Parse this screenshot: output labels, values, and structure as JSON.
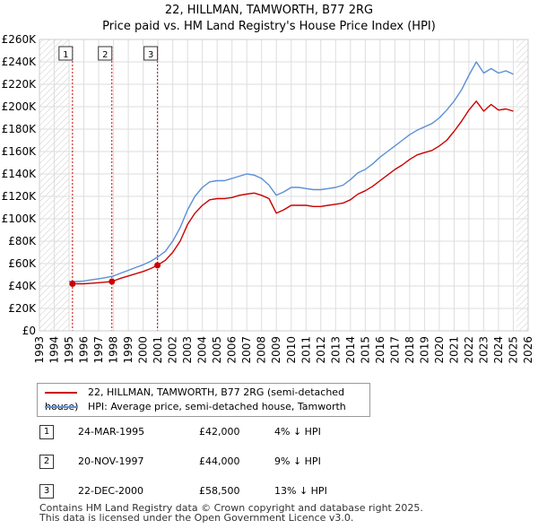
{
  "title_line1": "22, HILLMAN, TAMWORTH, B77 2RG",
  "title_line2": "Price paid vs. HM Land Registry's House Price Index (HPI)",
  "chart_data": {
    "type": "line",
    "xlim": [
      1993,
      2026
    ],
    "ylim": [
      0,
      260000
    ],
    "y_ticks": [
      0,
      20000,
      40000,
      60000,
      80000,
      100000,
      120000,
      140000,
      160000,
      180000,
      200000,
      220000,
      240000,
      260000
    ],
    "y_tick_labels": [
      "£0",
      "£20K",
      "£40K",
      "£60K",
      "£80K",
      "£100K",
      "£120K",
      "£140K",
      "£160K",
      "£180K",
      "£200K",
      "£220K",
      "£240K",
      "£260K"
    ],
    "x_ticks": [
      1993,
      1994,
      1995,
      1996,
      1997,
      1998,
      1999,
      2000,
      2001,
      2002,
      2003,
      2004,
      2005,
      2006,
      2007,
      2008,
      2009,
      2010,
      2011,
      2012,
      2013,
      2014,
      2015,
      2016,
      2017,
      2018,
      2019,
      2020,
      2021,
      2022,
      2023,
      2024,
      2025,
      2026
    ],
    "x_tick_labels": [
      "1993",
      "1994",
      "1995",
      "1996",
      "1997",
      "1998",
      "1999",
      "2000",
      "2001",
      "2002",
      "2003",
      "2004",
      "2005",
      "2006",
      "2007",
      "2008",
      "2009",
      "2010",
      "2011",
      "2012",
      "2013",
      "2014",
      "2015",
      "2016",
      "2017",
      "2018",
      "2019",
      "2020",
      "2021",
      "2022",
      "2023",
      "2024",
      "2025",
      "2026"
    ],
    "hatch_before": 1995.0,
    "hatch_after": 2025.2,
    "series": [
      {
        "name": "22, HILLMAN, TAMWORTH, B77 2RG (semi-detached house)",
        "color": "#cc0000",
        "x": [
          1995.23,
          1995.5,
          1996.0,
          1996.5,
          1997.0,
          1997.5,
          1997.89,
          1998.5,
          1999.0,
          1999.5,
          2000.0,
          2000.5,
          2000.97,
          2001.5,
          2002.0,
          2002.5,
          2003.0,
          2003.5,
          2004.0,
          2004.5,
          2005.0,
          2005.5,
          2006.0,
          2006.5,
          2007.0,
          2007.5,
          2008.0,
          2008.5,
          2009.0,
          2009.5,
          2010.0,
          2010.5,
          2011.0,
          2011.5,
          2012.0,
          2012.5,
          2013.0,
          2013.5,
          2014.0,
          2014.5,
          2015.0,
          2015.5,
          2016.0,
          2016.5,
          2017.0,
          2017.5,
          2018.0,
          2018.5,
          2019.0,
          2019.5,
          2020.0,
          2020.5,
          2021.0,
          2021.5,
          2022.0,
          2022.5,
          2023.0,
          2023.5,
          2024.0,
          2024.5,
          2025.0
        ],
        "values": [
          42000,
          42000,
          42000,
          42500,
          43000,
          43500,
          44000,
          47000,
          49000,
          51000,
          53000,
          55500,
          58500,
          63000,
          70000,
          80000,
          95000,
          105000,
          112000,
          117000,
          118000,
          118000,
          119000,
          121000,
          122000,
          123000,
          121000,
          118000,
          105000,
          108000,
          112000,
          112000,
          112000,
          111000,
          111000,
          112000,
          113000,
          114000,
          117000,
          122000,
          125000,
          129000,
          134000,
          139000,
          144000,
          148000,
          153000,
          157000,
          159000,
          161000,
          165000,
          170000,
          178000,
          187000,
          197000,
          205000,
          196000,
          202000,
          197000,
          198000,
          196000
        ]
      },
      {
        "name": "HPI: Average price, semi-detached house, Tamworth",
        "color": "#5b8fd6",
        "x": [
          1995.0,
          1995.5,
          1996.0,
          1996.5,
          1997.0,
          1997.5,
          1998.0,
          1998.5,
          1999.0,
          1999.5,
          2000.0,
          2000.5,
          2001.0,
          2001.5,
          2002.0,
          2002.5,
          2003.0,
          2003.5,
          2004.0,
          2004.5,
          2005.0,
          2005.5,
          2006.0,
          2006.5,
          2007.0,
          2007.5,
          2008.0,
          2008.5,
          2009.0,
          2009.5,
          2010.0,
          2010.5,
          2011.0,
          2011.5,
          2012.0,
          2012.5,
          2013.0,
          2013.5,
          2014.0,
          2014.5,
          2015.0,
          2015.5,
          2016.0,
          2016.5,
          2017.0,
          2017.5,
          2018.0,
          2018.5,
          2019.0,
          2019.5,
          2020.0,
          2020.5,
          2021.0,
          2021.5,
          2022.0,
          2022.5,
          2023.0,
          2023.5,
          2024.0,
          2024.5,
          2025.0
        ],
        "values": [
          44000,
          44000,
          44500,
          45500,
          46500,
          47500,
          49000,
          51500,
          54000,
          56500,
          59000,
          62000,
          66000,
          71000,
          80000,
          92000,
          108000,
          120000,
          128000,
          133000,
          134000,
          134000,
          136000,
          138000,
          140000,
          139000,
          136000,
          130000,
          121000,
          124000,
          128000,
          128000,
          127000,
          126000,
          126000,
          127000,
          128000,
          130000,
          135000,
          141000,
          144000,
          149000,
          155000,
          160000,
          165000,
          170000,
          175000,
          179000,
          182000,
          185000,
          190000,
          197000,
          205000,
          215000,
          228000,
          240000,
          230000,
          234000,
          230000,
          232000,
          229000
        ]
      }
    ],
    "sales": [
      {
        "n": "1",
        "x": 1995.23,
        "value": 42000
      },
      {
        "n": "2",
        "x": 1997.89,
        "value": 44000
      },
      {
        "n": "3",
        "x": 2000.97,
        "value": 58500
      }
    ]
  },
  "legend": {
    "red_label": "22, HILLMAN, TAMWORTH, B77 2RG (semi-detached house)",
    "blue_label": "HPI: Average price, semi-detached house, Tamworth"
  },
  "sales_table": [
    {
      "n": "1",
      "date": "24-MAR-1995",
      "price": "£42,000",
      "hpi": "4% ↓ HPI"
    },
    {
      "n": "2",
      "date": "20-NOV-1997",
      "price": "£44,000",
      "hpi": "9% ↓ HPI"
    },
    {
      "n": "3",
      "date": "22-DEC-2000",
      "price": "£58,500",
      "hpi": "13% ↓ HPI"
    }
  ],
  "footer_line1": "Contains HM Land Registry data © Crown copyright and database right 2025.",
  "footer_line2": "This data is licensed under the Open Government Licence v3.0."
}
